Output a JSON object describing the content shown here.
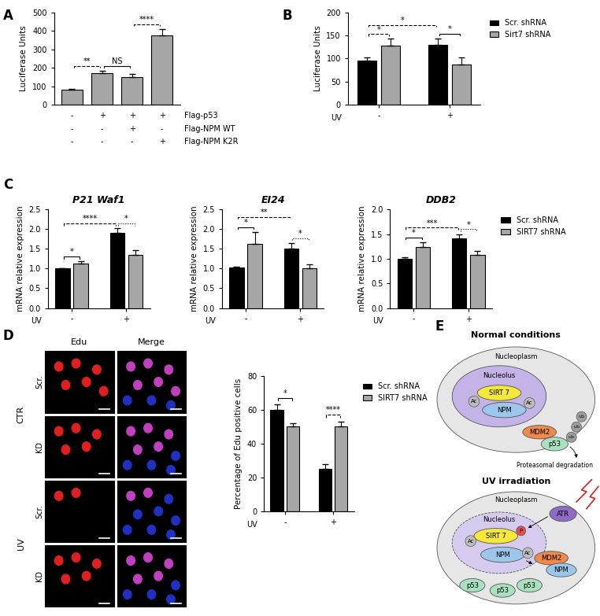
{
  "panel_labels": [
    "A",
    "B",
    "C",
    "D",
    "E"
  ],
  "chart_data": [
    {
      "type": "bar",
      "ylabel": "Luciferase Units",
      "categories": [
        null,
        null,
        null,
        null
      ],
      "values": [
        80,
        170,
        150,
        375
      ],
      "errors": [
        4,
        15,
        15,
        35
      ],
      "color": "#a6a6a6",
      "ylim": [
        0,
        500
      ],
      "yticks": [
        0,
        100,
        200,
        300,
        400,
        500
      ],
      "treatments": [
        {
          "name": "Flag-p53",
          "signs": [
            "-",
            "+",
            "+",
            "+"
          ]
        },
        {
          "name": "Flag-NPM WT",
          "signs": [
            "-",
            "-",
            "+",
            "-"
          ]
        },
        {
          "name": "Flag-NPM K2R",
          "signs": [
            "-",
            "-",
            "-",
            "+"
          ]
        }
      ],
      "comparisons": [
        {
          "between": [
            0,
            1
          ],
          "label": "**",
          "line_style": "dashed"
        },
        {
          "between": [
            1,
            2
          ],
          "label": "NS",
          "line_style": "solid"
        },
        {
          "between": [
            2,
            3
          ],
          "label": "****",
          "line_style": "dashed"
        }
      ]
    },
    {
      "type": "bar",
      "ylabel": "Luciferase Units",
      "xlabel": "UV",
      "categories": [
        "-",
        "+"
      ],
      "series": [
        {
          "name": "Scr. shRNA",
          "color": "#000000",
          "values": [
            95,
            130
          ],
          "errors": [
            8,
            14
          ]
        },
        {
          "name": "Sirt7 shRNA",
          "color": "#a6a6a6",
          "values": [
            128,
            87
          ],
          "errors": [
            15,
            15
          ]
        }
      ],
      "ylim": [
        0,
        200
      ],
      "yticks": [
        0,
        50,
        100,
        150,
        200
      ],
      "legend": "right",
      "comparisons": [
        {
          "between": [
            0,
            1
          ],
          "label": "*",
          "line_style": "dashed"
        },
        {
          "between": [
            0,
            2
          ],
          "label": "*",
          "line_style": "dashed"
        },
        {
          "between": [
            2,
            3
          ],
          "label": "*",
          "line_style": "solid"
        }
      ]
    },
    {
      "type": "bar",
      "title": "P21 Waf1",
      "ylabel": "mRNA relative expression",
      "xlabel": "UV",
      "categories": [
        "-",
        "+"
      ],
      "series": [
        {
          "color": "#000000",
          "values": [
            1.0,
            1.9
          ],
          "errors": [
            0.0,
            0.12
          ]
        },
        {
          "color": "#a6a6a6",
          "values": [
            1.13,
            1.35
          ],
          "errors": [
            0.05,
            0.12
          ]
        }
      ],
      "ylim": [
        0,
        2.5
      ],
      "yticks": [
        {
          "value": 0,
          "label": "0.0"
        },
        0.5,
        {
          "value": 1,
          "label": "1.0"
        },
        1.5,
        {
          "value": 2,
          "label": "2.0"
        },
        2.5
      ],
      "comparisons": [
        {
          "between": [
            0,
            1
          ],
          "label": "*",
          "line_style": "solid"
        },
        {
          "between": [
            0,
            2
          ],
          "label": "****",
          "line_style": "dashed"
        },
        {
          "between": [
            2,
            3
          ],
          "label": "*",
          "line_style": "dotted"
        }
      ]
    },
    {
      "type": "bar",
      "title": "EI24",
      "ylabel": "mRNA relative expression",
      "xlabel": "UV",
      "categories": [
        "-",
        "+"
      ],
      "series": [
        {
          "color": "#000000",
          "values": [
            1.02,
            1.5
          ],
          "errors": [
            0.02,
            0.15
          ]
        },
        {
          "color": "#a6a6a6",
          "values": [
            1.63,
            1.0
          ],
          "errors": [
            0.3,
            0.1
          ]
        }
      ],
      "ylim": [
        0,
        2.5
      ],
      "yticks": [
        {
          "value": 0,
          "label": "0.0"
        },
        0.5,
        {
          "value": 1,
          "label": "1.0"
        },
        1.5,
        {
          "value": 2,
          "label": "2.0"
        },
        2.5
      ],
      "comparisons": [
        {
          "between": [
            0,
            1
          ],
          "label": "*",
          "line_style": "solid"
        },
        {
          "between": [
            0,
            2
          ],
          "label": "**",
          "line_style": "dashed"
        },
        {
          "between": [
            2,
            3
          ],
          "label": "*",
          "line_style": "dotted"
        }
      ]
    },
    {
      "type": "bar",
      "title": "DDB2",
      "ylabel": "mRNA relative expression",
      "xlabel": "UV",
      "categories": [
        "-",
        "+"
      ],
      "series": [
        {
          "name": "Scr. shRNA",
          "color": "#000000",
          "values": [
            1.0,
            1.42
          ],
          "errors": [
            0.03,
            0.08
          ]
        },
        {
          "name": "SIRT7 shRNA",
          "color": "#a6a6a6",
          "values": [
            1.23,
            1.08
          ],
          "errors": [
            0.1,
            0.08
          ]
        }
      ],
      "ylim": [
        0,
        2.0
      ],
      "yticks": [
        {
          "value": 0,
          "label": "0.0"
        },
        0.5,
        {
          "value": 1,
          "label": "1.0"
        },
        1.5,
        {
          "value": 2,
          "label": "2.0"
        }
      ],
      "legend": "right",
      "comparisons": [
        {
          "between": [
            0,
            1
          ],
          "label": "*",
          "line_style": "solid"
        },
        {
          "between": [
            0,
            2
          ],
          "label": "***",
          "line_style": "dashed"
        },
        {
          "between": [
            2,
            3
          ],
          "label": "*",
          "line_style": "dotted"
        }
      ]
    },
    {
      "type": "bar",
      "ylabel": "Percentage of Edu positive cells",
      "xlabel": "UV",
      "categories": [
        "-",
        "+"
      ],
      "series": [
        {
          "name": "Scr. shRNA",
          "color": "#000000",
          "values": [
            60,
            25
          ],
          "errors": [
            3,
            3
          ]
        },
        {
          "name": "SIRT7 shRNA",
          "color": "#a6a6a6",
          "values": [
            50,
            50
          ],
          "errors": [
            2,
            3
          ]
        }
      ],
      "ylim": [
        0,
        80
      ],
      "yticks": [
        0,
        20,
        40,
        60,
        80
      ],
      "legend": "right",
      "comparisons": [
        {
          "between": [
            0,
            1
          ],
          "label": "*",
          "line_style": "solid"
        },
        {
          "between": [
            2,
            3
          ],
          "label": "****",
          "line_style": "dashed"
        }
      ]
    }
  ],
  "micrographs": {
    "column_titles": [
      "Edu",
      "Merge"
    ],
    "groups": [
      {
        "label": "CTR",
        "rows": [
          "Scr.",
          "KD"
        ]
      },
      {
        "label": "UV",
        "rows": [
          "Scr.",
          "KD"
        ]
      }
    ]
  },
  "diagram": [
    {
      "title": "Normal conditions",
      "compartment": "Nucleoplasm",
      "nucleolus": "Nucleolus",
      "sirt7": "SIRT 7",
      "npm": "NPM",
      "acetyl": [
        "Ac",
        "Ac"
      ],
      "mdm2": "MDM2",
      "p53": [
        "p53"
      ],
      "ubiquitin": [
        "ub",
        "ub",
        "ub"
      ],
      "note": "Proteasomal degradation"
    },
    {
      "title": "UV irradiation",
      "compartment": "Nucleoplasm",
      "nucleolus": "Nucleolus",
      "kinase": "ATR",
      "phospho": "P",
      "sirt7": "SIRT 7",
      "npm": "NPM",
      "acetyl": [
        "Ac",
        "Ac"
      ],
      "mdm2": "MDM2",
      "npm_bound": "NPM",
      "p53": [
        "p53",
        "p53",
        "p53"
      ]
    }
  ]
}
